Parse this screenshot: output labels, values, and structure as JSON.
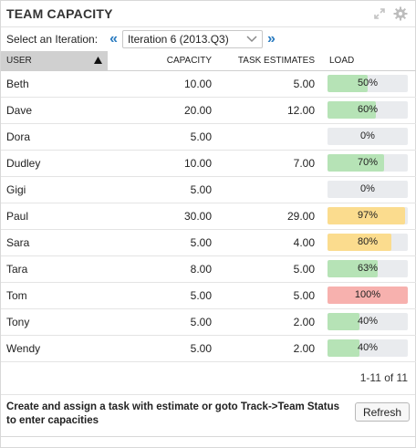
{
  "widget": {
    "title": "TEAM CAPACITY"
  },
  "toolbar": {
    "iteration_label": "Select an Iteration:",
    "prev_arrow": "«",
    "next_arrow": "»",
    "selected_iteration": "Iteration 6 (2013.Q3)"
  },
  "table": {
    "columns": {
      "user": "USER",
      "capacity": "CAPACITY",
      "task_estimates": "TASK ESTIMATES",
      "load": "LOAD"
    },
    "rows": [
      {
        "user": "Beth",
        "capacity": "10.00",
        "task_estimates": "5.00",
        "load_label": "50%",
        "load": 50
      },
      {
        "user": "Dave",
        "capacity": "20.00",
        "task_estimates": "12.00",
        "load_label": "60%",
        "load": 60
      },
      {
        "user": "Dora",
        "capacity": "5.00",
        "task_estimates": "",
        "load_label": "0%",
        "load": 0
      },
      {
        "user": "Dudley",
        "capacity": "10.00",
        "task_estimates": "7.00",
        "load_label": "70%",
        "load": 70
      },
      {
        "user": "Gigi",
        "capacity": "5.00",
        "task_estimates": "",
        "load_label": "0%",
        "load": 0
      },
      {
        "user": "Paul",
        "capacity": "30.00",
        "task_estimates": "29.00",
        "load_label": "97%",
        "load": 97
      },
      {
        "user": "Sara",
        "capacity": "5.00",
        "task_estimates": "4.00",
        "load_label": "80%",
        "load": 80
      },
      {
        "user": "Tara",
        "capacity": "8.00",
        "task_estimates": "5.00",
        "load_label": "63%",
        "load": 63
      },
      {
        "user": "Tom",
        "capacity": "5.00",
        "task_estimates": "5.00",
        "load_label": "100%",
        "load": 100
      },
      {
        "user": "Tony",
        "capacity": "5.00",
        "task_estimates": "2.00",
        "load_label": "40%",
        "load": 40
      },
      {
        "user": "Wendy",
        "capacity": "5.00",
        "task_estimates": "2.00",
        "load_label": "40%",
        "load": 40
      }
    ]
  },
  "colors": {
    "load_ok": "#b6e3b6",
    "load_warn": "#fbdc8e",
    "load_full": "#f7b1ae",
    "load_track": "#e9ebee",
    "accent": "#2a7bc0"
  },
  "pager": {
    "text": "1-11 of 11"
  },
  "footer": {
    "message": "Create and assign a task with estimate or goto Track->Team Status to enter capacities",
    "refresh_label": "Refresh"
  }
}
